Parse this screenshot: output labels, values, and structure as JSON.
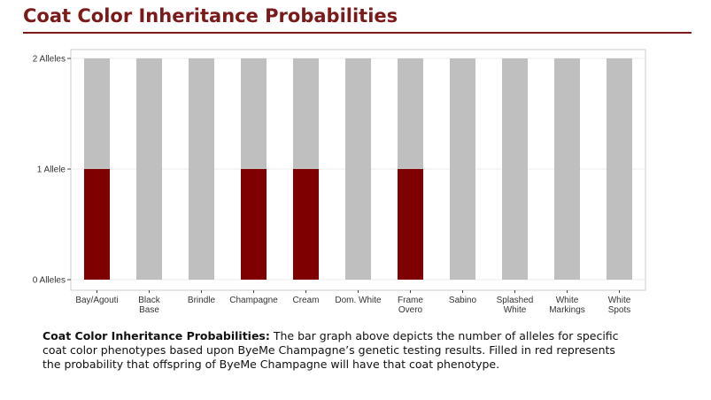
{
  "header": {
    "title": "Coat Color Inheritance Probabilities"
  },
  "caption": {
    "label": "Coat Color Inheritance Probabilities:",
    "text": "The bar graph above depicts the number of alleles for specific coat color phenotypes based upon ByeMe Champagne’s genetic testing results. Filled in red represents the probability that offspring of ByeMe Champagne will have that coat phenotype."
  },
  "colors": {
    "filled": "#7f0000",
    "empty": "#bfbfbf",
    "accent": "#7a1a1a"
  },
  "chart_data": {
    "type": "bar",
    "stacked": true,
    "categories": [
      [
        "Bay/Agouti"
      ],
      [
        "Black",
        "Base"
      ],
      [
        "Brindle"
      ],
      [
        "Champagne"
      ],
      [
        "Cream"
      ],
      [
        "Dom. White"
      ],
      [
        "Frame",
        "Overo"
      ],
      [
        "Sabino"
      ],
      [
        "Splashed",
        "White"
      ],
      [
        "White",
        "Markings"
      ],
      [
        "White",
        "Spots"
      ]
    ],
    "series": [
      {
        "color": "#7f0000",
        "values": [
          1,
          0,
          0,
          1,
          1,
          0,
          1,
          0,
          0,
          0,
          0
        ]
      },
      {
        "color": "#bfbfbf",
        "values": [
          1,
          2,
          2,
          1,
          1,
          2,
          1,
          2,
          2,
          2,
          2
        ]
      }
    ],
    "yticks": [
      {
        "value": 0,
        "label": "0 Alleles"
      },
      {
        "value": 1,
        "label": "1 Allele"
      },
      {
        "value": 2,
        "label": "2 Alleles"
      }
    ],
    "ylim": [
      0,
      2
    ],
    "grid": true,
    "legend": "none"
  }
}
